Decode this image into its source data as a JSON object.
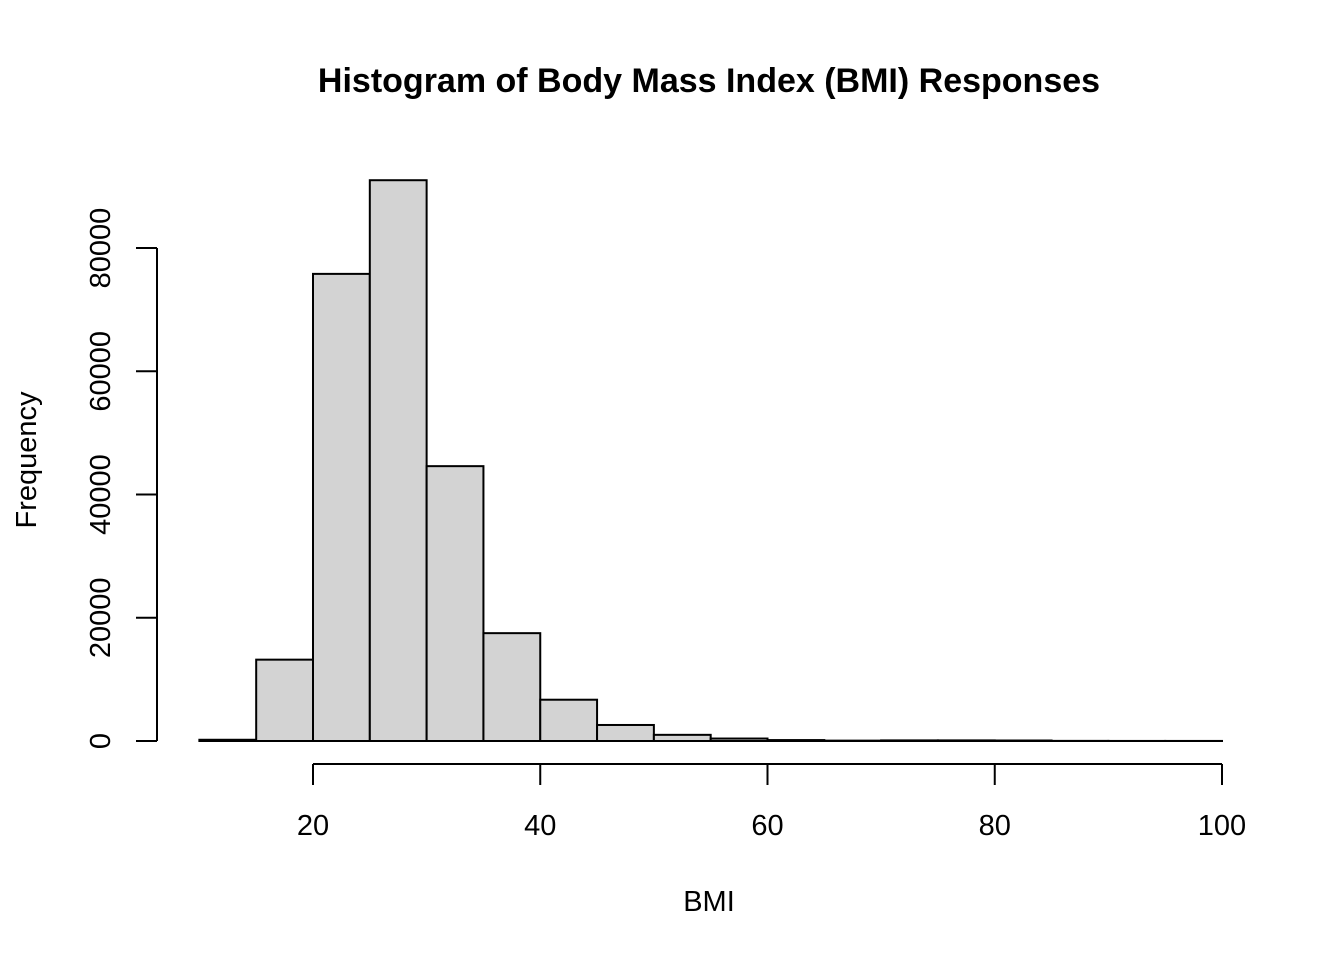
{
  "chart_data": {
    "type": "bar",
    "title": "Histogram of Body Mass Index (BMI) Responses",
    "xlabel": "BMI",
    "ylabel": "Frequency",
    "bins": [
      {
        "from": 10,
        "to": 15,
        "count": 200
      },
      {
        "from": 15,
        "to": 20,
        "count": 13200
      },
      {
        "from": 20,
        "to": 25,
        "count": 75800
      },
      {
        "from": 25,
        "to": 30,
        "count": 91000
      },
      {
        "from": 30,
        "to": 35,
        "count": 44600
      },
      {
        "from": 35,
        "to": 40,
        "count": 17500
      },
      {
        "from": 40,
        "to": 45,
        "count": 6700
      },
      {
        "from": 45,
        "to": 50,
        "count": 2600
      },
      {
        "from": 50,
        "to": 55,
        "count": 1000
      },
      {
        "from": 55,
        "to": 60,
        "count": 400
      },
      {
        "from": 60,
        "to": 65,
        "count": 150
      },
      {
        "from": 65,
        "to": 70,
        "count": 60
      },
      {
        "from": 70,
        "to": 75,
        "count": 100
      },
      {
        "from": 75,
        "to": 80,
        "count": 100
      },
      {
        "from": 80,
        "to": 85,
        "count": 80
      },
      {
        "from": 85,
        "to": 90,
        "count": 20
      },
      {
        "from": 90,
        "to": 95,
        "count": 10
      },
      {
        "from": 95,
        "to": 100,
        "count": 10
      }
    ],
    "xlim": [
      10,
      100
    ],
    "ylim": [
      0,
      91000
    ],
    "x_ticks": [
      20,
      40,
      60,
      80,
      100
    ],
    "y_ticks": [
      0,
      20000,
      40000,
      60000,
      80000
    ],
    "grid": false,
    "legend": "none",
    "bar_fill": "#d3d3d3",
    "bar_stroke": "#000000"
  }
}
